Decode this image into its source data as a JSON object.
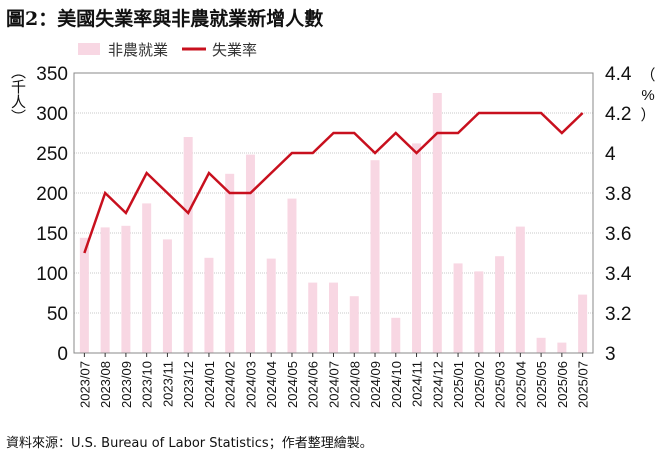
{
  "title": "圖2：美國失業率與非農就業新增人數",
  "source": "資料來源：U.S. Bureau of Labor Statistics；作者整理繪製。",
  "chart_data": {
    "type": "bar+line",
    "categories": [
      "2023/07",
      "2023/08",
      "2023/09",
      "2023/10",
      "2023/11",
      "2023/12",
      "2024/01",
      "2024/02",
      "2024/03",
      "2024/04",
      "2024/05",
      "2024/06",
      "2024/07",
      "2024/08",
      "2024/09",
      "2024/10",
      "2024/11",
      "2024/12",
      "2025/01",
      "2025/02",
      "2025/03",
      "2025/04",
      "2025/05",
      "2025/06",
      "2025/07"
    ],
    "series": [
      {
        "name": "非農就業",
        "type": "bar",
        "axis": "left",
        "color": "#f8d7e3",
        "values": [
          144,
          157,
          159,
          187,
          142,
          270,
          119,
          224,
          248,
          118,
          193,
          88,
          88,
          71,
          241,
          44,
          262,
          325,
          112,
          102,
          121,
          158,
          19,
          13,
          73
        ]
      },
      {
        "name": "失業率",
        "type": "line",
        "axis": "right",
        "color": "#c8101e",
        "values": [
          3.5,
          3.8,
          3.7,
          3.9,
          3.8,
          3.7,
          3.9,
          3.8,
          3.8,
          3.9,
          4.0,
          4.0,
          4.1,
          4.1,
          4.0,
          4.1,
          4.0,
          4.1,
          4.1,
          4.2,
          4.2,
          4.2,
          4.2,
          4.1,
          4.2
        ]
      }
    ],
    "ylabel_left": "（千人）",
    "ylabel_right": "（%）",
    "ylim_left": [
      0,
      350
    ],
    "yticks_left": [
      "0",
      "50",
      "100",
      "150",
      "200",
      "250",
      "300",
      "350"
    ],
    "ylim_right": [
      3,
      4.4
    ],
    "yticks_right": [
      "3",
      "3.2",
      "3.4",
      "3.6",
      "3.8",
      "4",
      "4.2",
      "4.4"
    ],
    "grid": true,
    "legend": "top"
  }
}
